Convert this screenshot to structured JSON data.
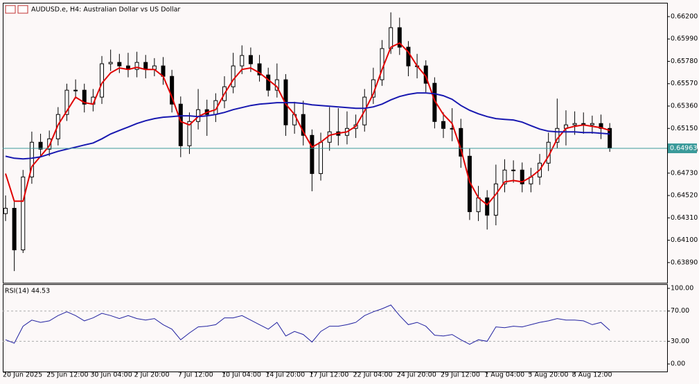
{
  "chart_data": [
    {
      "type": "candlestick",
      "title": "AUDUSD.e, H4:  Australian Dollar vs US Dollar",
      "categories": [
        "20 Jun 2025",
        null,
        null,
        null,
        null,
        "25 Jun 12:00",
        null,
        null,
        null,
        null,
        "30 Jun 04:00",
        null,
        null,
        null,
        null,
        "2 Jul 20:00",
        null,
        null,
        null,
        null,
        "7 Jul 12:00",
        null,
        null,
        null,
        null,
        "10 Jul 04:00",
        null,
        null,
        null,
        null,
        "14 Jul 20:00",
        null,
        null,
        null,
        null,
        "17 Jul 12:00",
        null,
        null,
        null,
        null,
        "22 Jul 04:00",
        null,
        null,
        null,
        null,
        "24 Jul 20:00",
        null,
        null,
        null,
        null,
        "29 Jul 12:00",
        null,
        null,
        null,
        null,
        "1 Aug 04:00",
        null,
        null,
        null,
        null,
        "5 Aug 20:00",
        null,
        null,
        null,
        null,
        "8 Aug 12:00",
        null,
        null,
        null,
        null
      ],
      "open": [
        0.6435,
        0.644,
        0.64009,
        0.64694,
        0.6502,
        0.64955,
        0.65052,
        0.65281,
        0.65509,
        0.65509,
        0.65378,
        0.65444,
        0.65757,
        0.6577,
        0.65737,
        0.65704,
        0.6577,
        0.65704,
        0.65737,
        0.65639,
        0.65378,
        0.64987,
        0.65215,
        0.65326,
        0.65281,
        0.65411,
        0.65541,
        0.65737,
        0.65835,
        0.65757,
        0.65652,
        0.65509,
        0.65607,
        0.65183,
        0.65281,
        0.65085,
        0.64726,
        0.6502,
        0.65118,
        0.65085,
        0.6515,
        0.65183,
        0.65444,
        0.65607,
        0.659,
        0.66096,
        0.65913,
        0.65737,
        0.65737,
        0.65574,
        0.65215,
        0.6515,
        0.6515,
        0.64889,
        0.64368,
        0.64498,
        0.64335,
        0.64629,
        0.64759,
        0.64759,
        0.64629,
        0.64694,
        0.64824,
        0.6502,
        0.6515,
        0.65183,
        0.65196,
        0.65183,
        0.65196,
        0.6515
      ],
      "high": [
        0.6452,
        0.6446,
        0.6476,
        0.6512,
        0.651,
        0.6513,
        0.6535,
        0.6557,
        0.6561,
        0.6557,
        0.6552,
        0.6583,
        0.6589,
        0.6585,
        0.6586,
        0.6587,
        0.6584,
        0.6581,
        0.6582,
        0.657,
        0.6545,
        0.653,
        0.6552,
        0.6542,
        0.6548,
        0.6564,
        0.6586,
        0.6593,
        0.6591,
        0.6584,
        0.6572,
        0.6576,
        0.6566,
        0.654,
        0.6541,
        0.6514,
        0.6511,
        0.6535,
        0.6534,
        0.6531,
        0.6528,
        0.6552,
        0.6572,
        0.6598,
        0.6624,
        0.6619,
        0.6597,
        0.6585,
        0.6579,
        0.6563,
        0.653,
        0.6534,
        0.6524,
        0.6496,
        0.6461,
        0.6457,
        0.6481,
        0.6486,
        0.6485,
        0.6483,
        0.6478,
        0.6491,
        0.6511,
        0.6543,
        0.6532,
        0.6531,
        0.653,
        0.6527,
        0.6528,
        0.652
      ],
      "low": [
        0.6428,
        0.6381,
        0.6398,
        0.6463,
        0.6489,
        0.6489,
        0.6499,
        0.6522,
        0.6543,
        0.653,
        0.6531,
        0.6538,
        0.6569,
        0.6567,
        0.6563,
        0.6563,
        0.6562,
        0.6564,
        0.6556,
        0.653,
        0.6488,
        0.6491,
        0.6514,
        0.6508,
        0.6521,
        0.6534,
        0.6548,
        0.6566,
        0.6568,
        0.6559,
        0.6545,
        0.6544,
        0.6508,
        0.651,
        0.6499,
        0.6456,
        0.6466,
        0.6494,
        0.6499,
        0.65,
        0.6506,
        0.6512,
        0.6538,
        0.6555,
        0.6585,
        0.6584,
        0.6564,
        0.6562,
        0.6549,
        0.6515,
        0.6506,
        0.6503,
        0.6478,
        0.6429,
        0.6428,
        0.642,
        0.6424,
        0.6455,
        0.6464,
        0.6455,
        0.6455,
        0.6462,
        0.6475,
        0.6496,
        0.6499,
        0.6509,
        0.651,
        0.651,
        0.6505,
        0.6493
      ],
      "close": [
        0.644,
        0.64009,
        0.64694,
        0.6502,
        0.64955,
        0.65052,
        0.65281,
        0.65509,
        0.65509,
        0.65378,
        0.65444,
        0.65757,
        0.6577,
        0.65737,
        0.65704,
        0.6577,
        0.65704,
        0.65737,
        0.65639,
        0.65378,
        0.64987,
        0.65215,
        0.65326,
        0.65281,
        0.65411,
        0.65541,
        0.65737,
        0.65835,
        0.65757,
        0.65652,
        0.65509,
        0.65607,
        0.65183,
        0.65281,
        0.65085,
        0.64726,
        0.6502,
        0.65118,
        0.65085,
        0.6515,
        0.65183,
        0.65444,
        0.65607,
        0.659,
        0.66096,
        0.65913,
        0.65737,
        0.65737,
        0.65574,
        0.65215,
        0.6515,
        0.6515,
        0.64889,
        0.64368,
        0.64498,
        0.64335,
        0.64629,
        0.64759,
        0.64759,
        0.64629,
        0.64694,
        0.64824,
        0.6502,
        0.6515,
        0.65183,
        0.65196,
        0.65183,
        0.65196,
        0.6515,
        0.64963
      ],
      "overlays": [
        {
          "color": "#e00000",
          "values": [
            0.64726,
            0.64466,
            0.64466,
            0.64792,
            0.64889,
            0.64987,
            0.65183,
            0.65313,
            0.65444,
            0.65392,
            0.65378,
            0.65574,
            0.65672,
            0.65718,
            0.65704,
            0.65724,
            0.65704,
            0.65704,
            0.65639,
            0.65444,
            0.65215,
            0.65183,
            0.65261,
            0.653,
            0.65326,
            0.65476,
            0.65607,
            0.65704,
            0.65718,
            0.65672,
            0.65607,
            0.65541,
            0.65378,
            0.65281,
            0.65118,
            0.64974,
            0.6502,
            0.65085,
            0.65105,
            0.65118,
            0.6517,
            0.65313,
            0.65476,
            0.65704,
            0.65913,
            0.65952,
            0.65867,
            0.65737,
            0.65639,
            0.65411,
            0.65281,
            0.65196,
            0.64955,
            0.64648,
            0.64498,
            0.64433,
            0.64531,
            0.64648,
            0.64661,
            0.64648,
            0.64694,
            0.64759,
            0.64889,
            0.65052,
            0.6515,
            0.6517,
            0.65183,
            0.6517,
            0.65157,
            0.65131
          ]
        },
        {
          "color": "#1818b0",
          "values": [
            0.64889,
            0.6487,
            0.64863,
            0.6487,
            0.64883,
            0.64909,
            0.64935,
            0.64955,
            0.64974,
            0.64994,
            0.65013,
            0.65052,
            0.65098,
            0.65131,
            0.65163,
            0.65196,
            0.65222,
            0.65242,
            0.65255,
            0.65261,
            0.65268,
            0.65268,
            0.65261,
            0.65268,
            0.65281,
            0.653,
            0.65326,
            0.65346,
            0.65365,
            0.65378,
            0.65385,
            0.65392,
            0.65392,
            0.65392,
            0.65385,
            0.65372,
            0.65365,
            0.65359,
            0.65352,
            0.65346,
            0.65339,
            0.65339,
            0.65352,
            0.65378,
            0.65418,
            0.6545,
            0.6547,
            0.65483,
            0.65483,
            0.65476,
            0.65457,
            0.65424,
            0.65365,
            0.6532,
            0.65287,
            0.65261,
            0.65242,
            0.65235,
            0.65229,
            0.65209,
            0.65176,
            0.65144,
            0.65124,
            0.65118,
            0.65118,
            0.65118,
            0.65111,
            0.65111,
            0.65105,
            0.65098
          ]
        }
      ],
      "last_price": {
        "value": 0.64963,
        "label": "0.64963"
      },
      "ylim": [
        0.637,
        0.6633
      ],
      "yticks": [
        {
          "value": 0.662,
          "label": "0.66200"
        },
        {
          "value": 0.6599,
          "label": "0.65990"
        },
        {
          "value": 0.6578,
          "label": "0.65780"
        },
        {
          "value": 0.6557,
          "label": "0.65570"
        },
        {
          "value": 0.6536,
          "label": "0.65360"
        },
        {
          "value": 0.6515,
          "label": "0.65150"
        },
        {
          "value": 0.6494,
          "label": "0.64940"
        },
        {
          "value": 0.6473,
          "label": "0.64730"
        },
        {
          "value": 0.6452,
          "label": "0.64520"
        },
        {
          "value": 0.6431,
          "label": "0.64310"
        },
        {
          "value": 0.641,
          "label": "0.64100"
        },
        {
          "value": 0.6389,
          "label": "0.63890"
        }
      ]
    },
    {
      "type": "line",
      "title": "RSI(14) 44.53",
      "color": "#2020a0",
      "values": [
        32,
        27.5,
        50,
        58,
        55,
        57,
        64,
        69,
        64,
        57,
        61,
        67,
        64,
        60,
        64,
        60,
        58,
        60,
        52,
        46,
        32,
        41,
        49,
        50,
        52,
        61,
        61,
        64,
        58,
        52,
        46,
        55,
        37,
        43,
        39,
        29,
        43,
        50,
        50,
        52,
        55,
        64,
        69,
        73,
        78,
        64,
        52,
        55,
        50,
        38,
        37,
        39,
        32,
        26,
        32,
        30,
        49,
        48,
        50,
        49,
        52,
        55,
        57,
        60,
        58,
        58,
        57,
        52,
        55,
        44.53
      ],
      "levels": [
        70,
        30
      ],
      "ylim": [
        -10,
        104.6
      ],
      "yticks": [
        {
          "value": 100,
          "label": "100.00"
        },
        {
          "value": 70,
          "label": "70.00"
        },
        {
          "value": 30,
          "label": "30.00"
        },
        {
          "value": 0,
          "label": "0.00"
        }
      ]
    }
  ]
}
